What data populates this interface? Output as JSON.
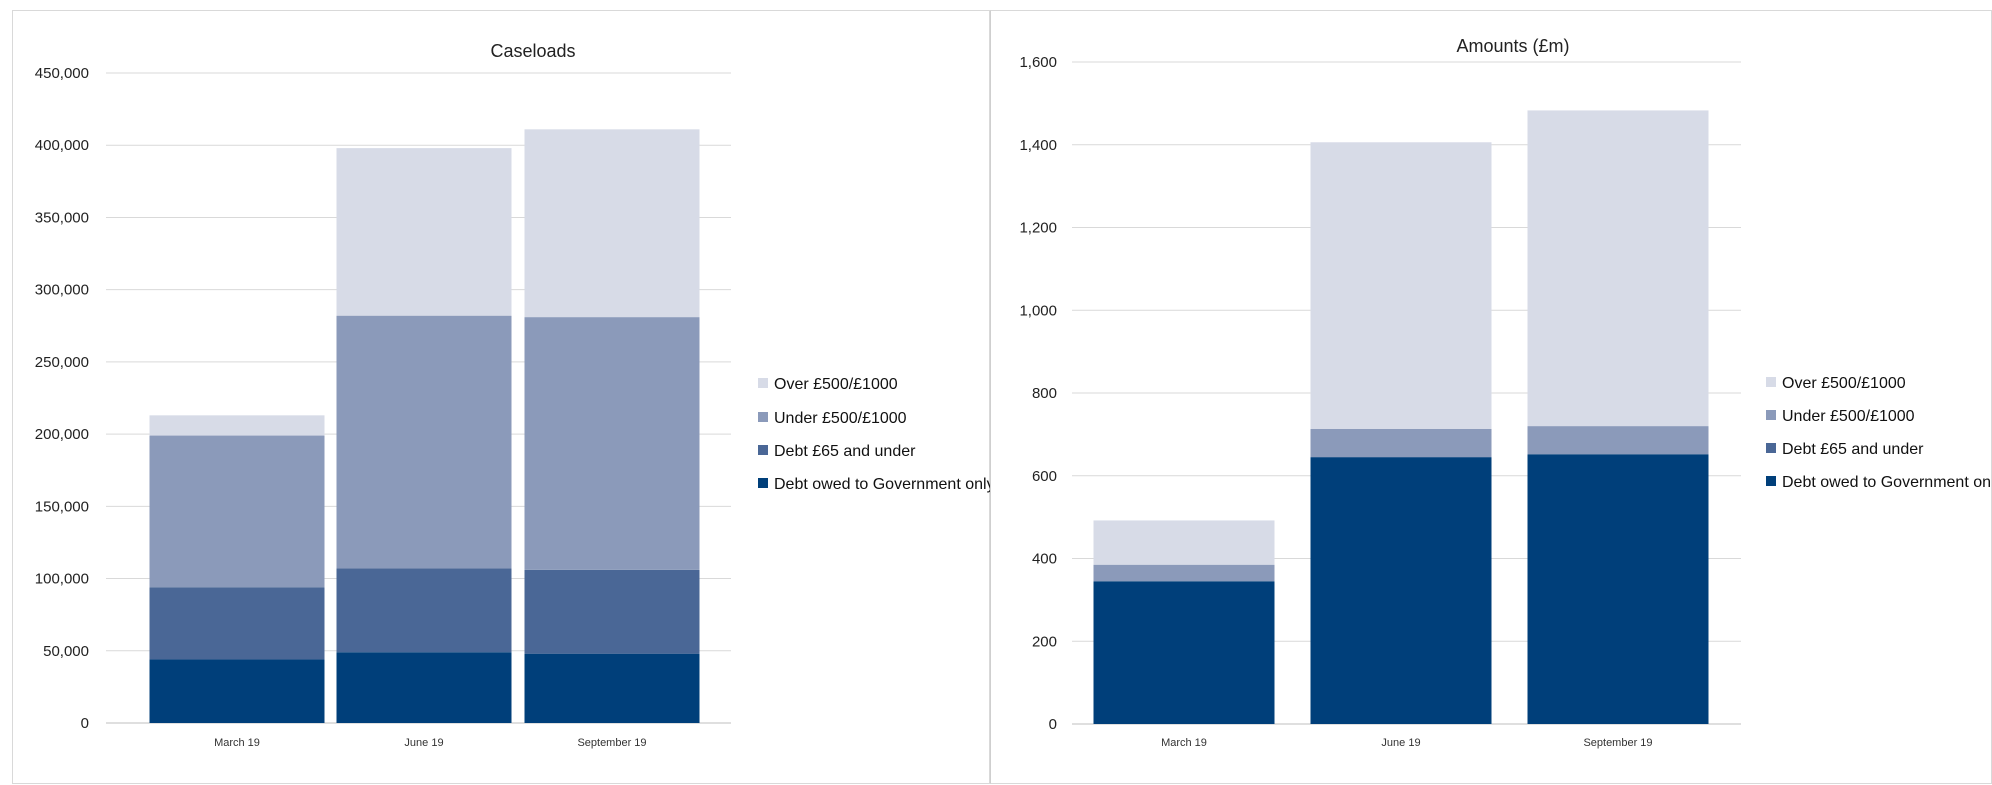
{
  "chart_data": [
    {
      "type": "bar",
      "stacked": true,
      "title": "Caseloads",
      "xlabel": "",
      "ylabel": "",
      "ylim": [
        0,
        450000
      ],
      "yticks": [
        "0",
        "50,000",
        "100,000",
        "150,000",
        "200,000",
        "250,000",
        "300,000",
        "350,000",
        "400,000",
        "450,000"
      ],
      "categories": [
        "March 19",
        "June 19",
        "September 19"
      ],
      "series": [
        {
          "name": "Debt owed to Government only",
          "color": "#003f7a",
          "values": [
            44000,
            49000,
            48000
          ]
        },
        {
          "name": "Debt £65 and under",
          "color": "#4a6796",
          "values": [
            50000,
            58000,
            58000
          ]
        },
        {
          "name": "Under £500/£1000",
          "color": "#8b9aba",
          "values": [
            105000,
            175000,
            175000
          ]
        },
        {
          "name": "Over £500/£1000",
          "color": "#d7dbe7",
          "values": [
            14000,
            116000,
            130000
          ]
        }
      ],
      "legend": "right",
      "grid": true
    },
    {
      "type": "bar",
      "stacked": true,
      "title": "Amounts (£m)",
      "xlabel": "",
      "ylabel": "",
      "ylim": [
        0,
        1600
      ],
      "yticks": [
        "0",
        "200",
        "400",
        "600",
        "800",
        "1,000",
        "1,200",
        "1,400",
        "1,600"
      ],
      "categories": [
        "March 19",
        "June 19",
        "September 19"
      ],
      "series": [
        {
          "name": "Debt owed to Government only",
          "color": "#003f7a",
          "values": [
            345,
            645,
            652
          ]
        },
        {
          "name": "Debt £65 and under",
          "color": "#4a6796",
          "values": [
            0,
            0,
            0
          ]
        },
        {
          "name": "Under £500/£1000",
          "color": "#8b9aba",
          "values": [
            40,
            68,
            68
          ]
        },
        {
          "name": "Over £500/£1000",
          "color": "#d7dbe7",
          "values": [
            107,
            693,
            763
          ]
        }
      ],
      "legend": "right",
      "grid": true
    }
  ]
}
